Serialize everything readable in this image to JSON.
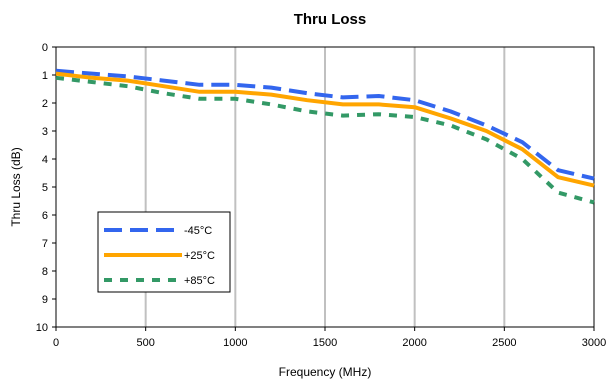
{
  "chart_data": {
    "type": "line",
    "title": "Thru Loss",
    "xlabel": "Frequency (MHz)",
    "ylabel": "Thru Loss (dB)",
    "xlim": [
      0,
      3000
    ],
    "ylim": [
      0,
      10
    ],
    "y_inverted": true,
    "x_ticks": [
      "0",
      "500",
      "1000",
      "1500",
      "2000",
      "2500",
      "3000"
    ],
    "y_ticks": [
      "0",
      "1",
      "2",
      "3",
      "4",
      "5",
      "6",
      "7",
      "8",
      "9",
      "10"
    ],
    "grid": "vertical",
    "legend_position": "bottom-left",
    "series": [
      {
        "name": "-45°C",
        "color": "#3366ee",
        "style": "dashed",
        "x": [
          0,
          200,
          400,
          600,
          800,
          1000,
          1200,
          1400,
          1600,
          1800,
          2000,
          2200,
          2400,
          2600,
          2800,
          3000
        ],
        "y": [
          0.85,
          0.95,
          1.05,
          1.2,
          1.35,
          1.35,
          1.45,
          1.65,
          1.8,
          1.75,
          1.9,
          2.3,
          2.8,
          3.4,
          4.4,
          4.7
        ]
      },
      {
        "name": "+25°C",
        "color": "#ffa500",
        "style": "solid",
        "x": [
          0,
          200,
          400,
          600,
          800,
          1000,
          1200,
          1400,
          1600,
          1800,
          2000,
          2200,
          2400,
          2600,
          2800,
          3000
        ],
        "y": [
          0.95,
          1.1,
          1.2,
          1.4,
          1.6,
          1.6,
          1.7,
          1.9,
          2.05,
          2.05,
          2.15,
          2.55,
          3.0,
          3.65,
          4.65,
          4.95
        ]
      },
      {
        "name": "+85°C",
        "color": "#339966",
        "style": "dashed",
        "x": [
          0,
          200,
          400,
          600,
          800,
          1000,
          1200,
          1400,
          1600,
          1800,
          2000,
          2200,
          2400,
          2600,
          2800,
          3000
        ],
        "y": [
          1.1,
          1.25,
          1.4,
          1.65,
          1.85,
          1.85,
          2.05,
          2.3,
          2.45,
          2.4,
          2.5,
          2.8,
          3.3,
          4.0,
          5.2,
          5.55
        ]
      }
    ]
  }
}
